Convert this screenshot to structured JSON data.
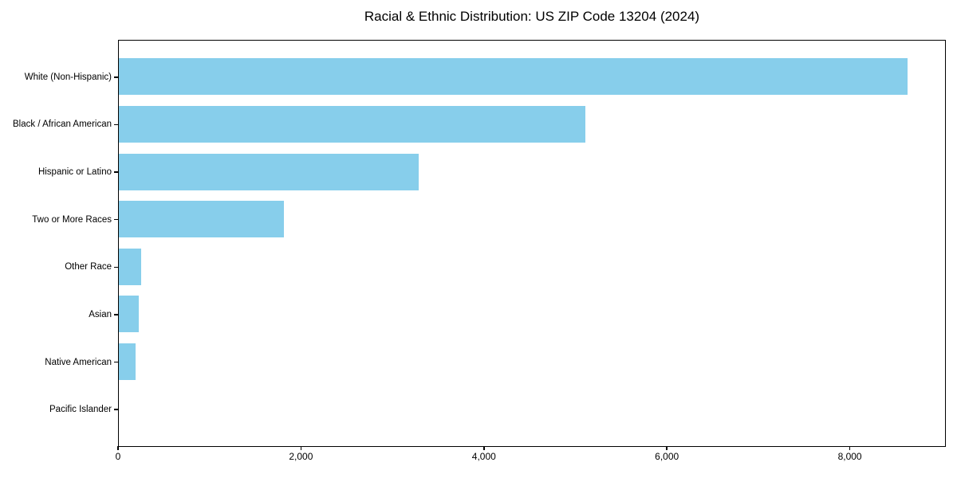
{
  "figure": {
    "background_color": "#ffffff",
    "frame_color": "#000000",
    "text_color": "#000000"
  },
  "chart_data": {
    "type": "bar",
    "orientation": "horizontal",
    "title": "Racial & Ethnic Distribution: US ZIP Code 13204 (2024)",
    "categories": [
      "White (Non-Hispanic)",
      "Black / African American",
      "Hispanic or Latino",
      "Two or More Races",
      "Other Race",
      "Asian",
      "Native American",
      "Pacific Islander"
    ],
    "values": [
      8620,
      5100,
      3280,
      1800,
      240,
      220,
      180,
      0
    ],
    "xlabel": "",
    "ylabel": "",
    "xlim": [
      0,
      9050
    ],
    "x_ticks": [
      0,
      2000,
      4000,
      6000,
      8000
    ],
    "x_tick_labels": [
      "0",
      "2,000",
      "4,000",
      "6,000",
      "8,000"
    ],
    "bar_color": "#87CEEB",
    "grid": false,
    "legend_position": "none"
  }
}
